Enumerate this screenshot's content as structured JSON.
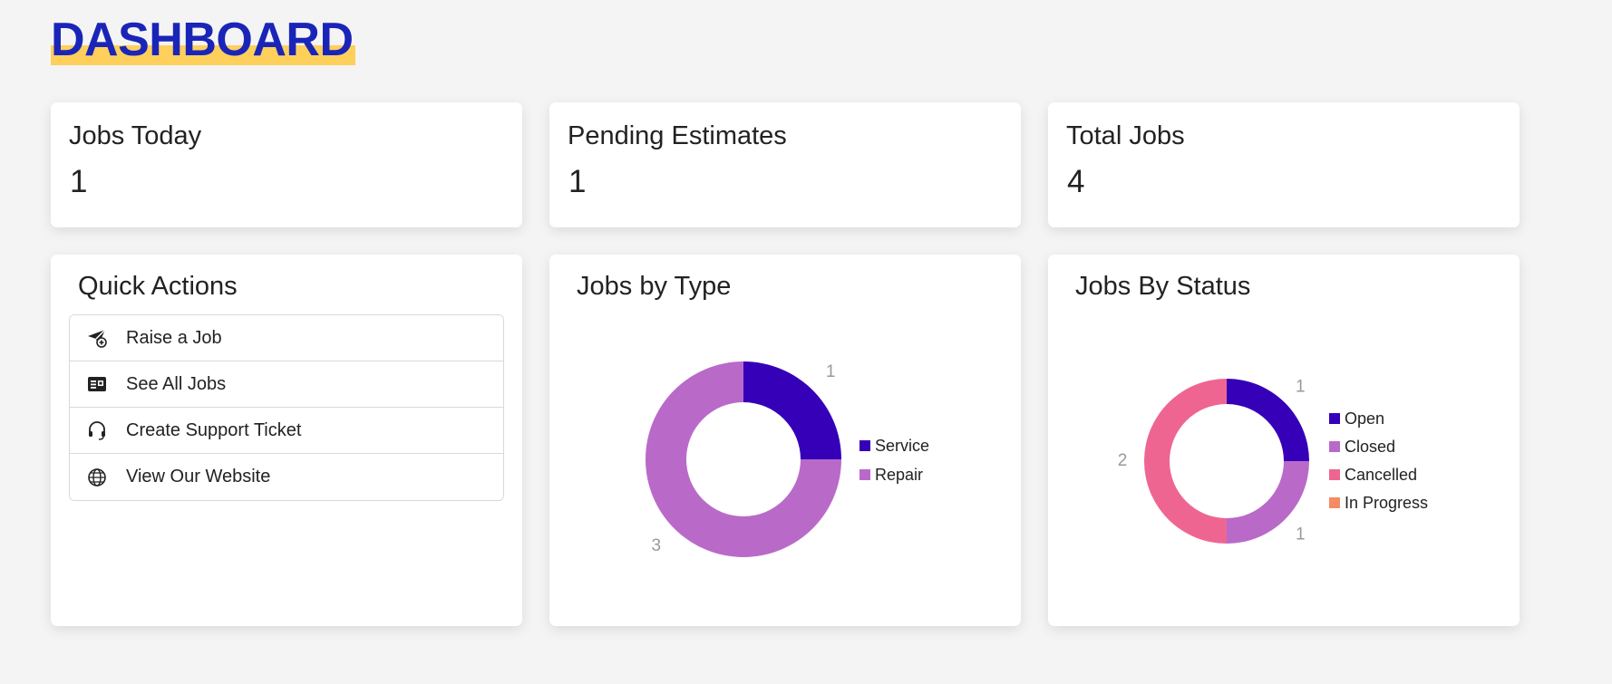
{
  "page": {
    "title": "DASHBOARD"
  },
  "stats": [
    {
      "label": "Jobs Today",
      "value": "1"
    },
    {
      "label": "Pending Estimates",
      "value": "1"
    },
    {
      "label": "Total Jobs",
      "value": "4"
    }
  ],
  "quick_actions": {
    "title": "Quick Actions",
    "items": [
      {
        "label": "Raise a Job",
        "icon": "send-plane-plus-icon"
      },
      {
        "label": "See All Jobs",
        "icon": "job-card-icon"
      },
      {
        "label": "Create Support Ticket",
        "icon": "headset-icon"
      },
      {
        "label": "View Our Website",
        "icon": "globe-icon"
      }
    ]
  },
  "colors": {
    "title": "#1a25b8",
    "title_highlight": "#ffcf5c",
    "open": "#3500b8",
    "closed": "#b96ac9",
    "cancelled": "#ef6592",
    "in_progress": "#f58b63",
    "service": "#3500b8",
    "repair": "#b96ac9"
  },
  "chart_data": [
    {
      "type": "pie",
      "title": "Jobs by Type",
      "donut": true,
      "categories": [
        "Service",
        "Repair"
      ],
      "values": [
        1,
        3
      ],
      "colors": [
        "#3500b8",
        "#b96ac9"
      ],
      "legend": "right"
    },
    {
      "type": "pie",
      "title": "Jobs By Status",
      "donut": true,
      "categories": [
        "Open",
        "Closed",
        "Cancelled",
        "In Progress"
      ],
      "values": [
        1,
        1,
        2,
        0
      ],
      "colors": [
        "#3500b8",
        "#b96ac9",
        "#ef6592",
        "#f58b63"
      ],
      "legend": "right"
    }
  ]
}
